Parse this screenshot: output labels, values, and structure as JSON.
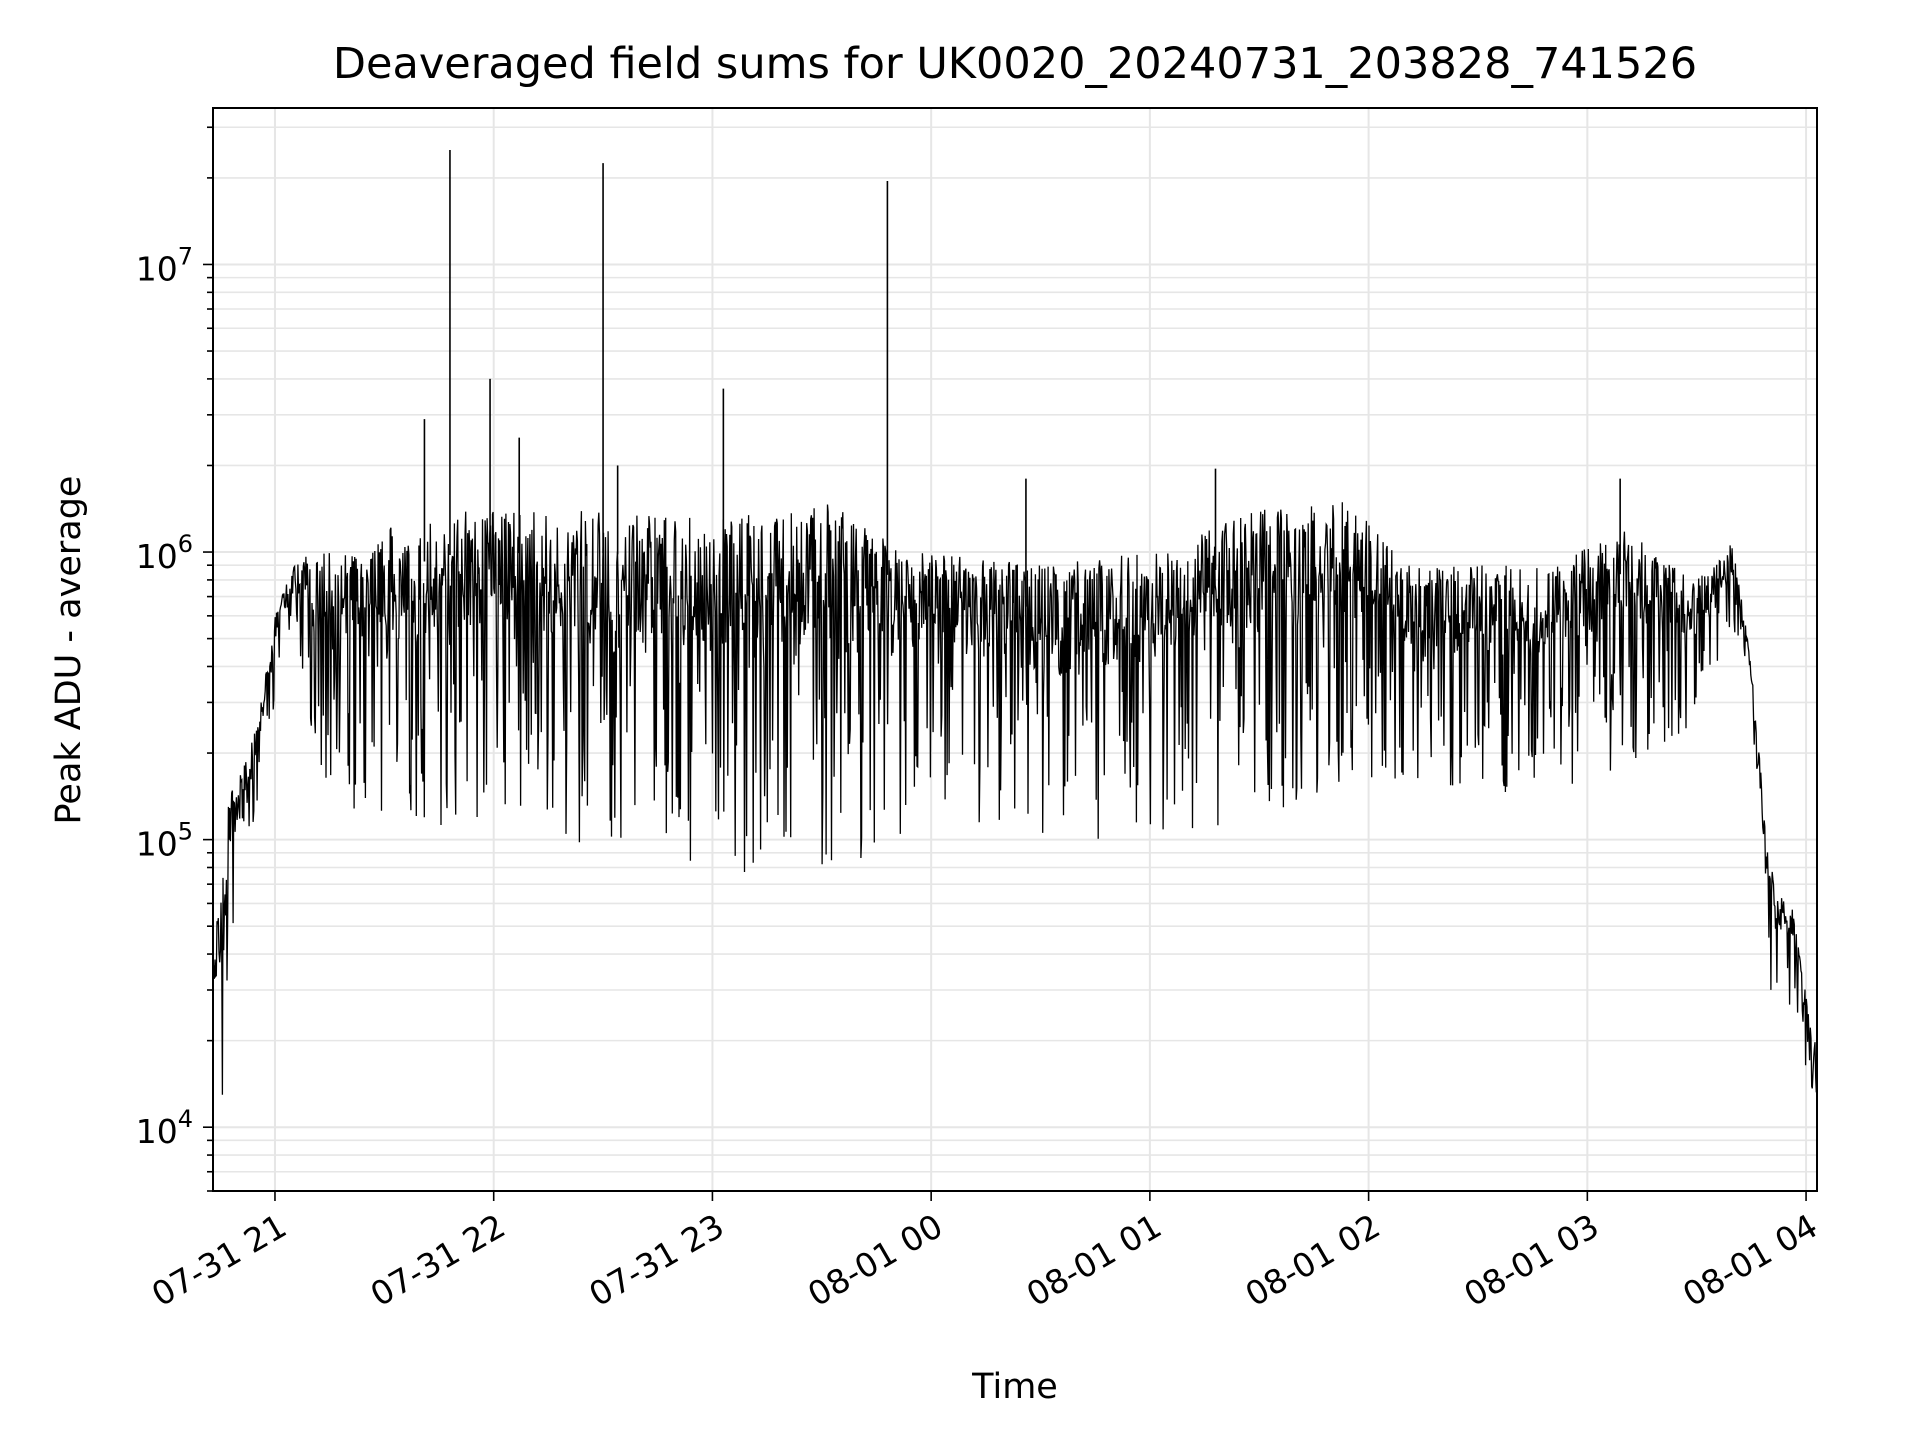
{
  "chart_data": {
    "type": "line",
    "title": "Deaveraged field sums for UK0020_20240731_203828_741526",
    "xlabel": "Time",
    "ylabel": "Peak ADU - average",
    "yscale": "log",
    "ylim": [
      6000,
      35000000
    ],
    "xlim": [
      "2024-07-31 20:43",
      "2024-08-01 04:03"
    ],
    "grid": true,
    "colors": {
      "line": "#000000",
      "grid": "#e6e6e6",
      "axes": "#000000"
    },
    "x_ticks": [
      {
        "time": "2024-07-31 21:00",
        "label": "07-31 21"
      },
      {
        "time": "2024-07-31 22:00",
        "label": "07-31 22"
      },
      {
        "time": "2024-07-31 23:00",
        "label": "07-31 23"
      },
      {
        "time": "2024-08-01 00:00",
        "label": "08-01 00"
      },
      {
        "time": "2024-08-01 01:00",
        "label": "08-01 01"
      },
      {
        "time": "2024-08-01 02:00",
        "label": "08-01 02"
      },
      {
        "time": "2024-08-01 03:00",
        "label": "08-01 03"
      },
      {
        "time": "2024-08-01 04:00",
        "label": "08-01 04"
      }
    ],
    "y_ticks": [
      {
        "value": 10000,
        "base": "10",
        "exp": "4"
      },
      {
        "value": 100000,
        "base": "10",
        "exp": "5"
      },
      {
        "value": 1000000,
        "base": "10",
        "exp": "6"
      },
      {
        "value": 10000000,
        "base": "10",
        "exp": "7"
      }
    ],
    "series": [
      {
        "envelope": [
          {
            "t": "2024-07-31 20:43",
            "low": 13000,
            "high": 35000
          },
          {
            "t": "2024-07-31 20:47",
            "low": 9000,
            "high": 150000
          },
          {
            "t": "2024-07-31 20:50",
            "low": 70000,
            "high": 160000
          },
          {
            "t": "2024-07-31 20:55",
            "low": 130000,
            "high": 250000
          },
          {
            "t": "2024-07-31 21:00",
            "low": 300000,
            "high": 600000
          },
          {
            "t": "2024-07-31 21:05",
            "low": 600000,
            "high": 900000
          },
          {
            "t": "2024-07-31 21:10",
            "low": 200000,
            "high": 1000000
          },
          {
            "t": "2024-07-31 21:20",
            "low": 110000,
            "high": 1000000
          },
          {
            "t": "2024-07-31 21:30",
            "low": 90000,
            "high": 1200000
          },
          {
            "t": "2024-07-31 21:40",
            "low": 100000,
            "high": 1300000
          },
          {
            "t": "2024-07-31 21:50",
            "low": 110000,
            "high": 1400000
          },
          {
            "t": "2024-07-31 22:00",
            "low": 120000,
            "high": 1400000
          },
          {
            "t": "2024-07-31 22:30",
            "low": 90000,
            "high": 1400000
          },
          {
            "t": "2024-07-31 23:00",
            "low": 80000,
            "high": 1300000
          },
          {
            "t": "2024-07-31 23:30",
            "low": 70000,
            "high": 1500000
          },
          {
            "t": "2024-08-01 00:00",
            "low": 120000,
            "high": 1000000
          },
          {
            "t": "2024-08-01 00:30",
            "low": 100000,
            "high": 900000
          },
          {
            "t": "2024-08-01 01:00",
            "low": 100000,
            "high": 1000000
          },
          {
            "t": "2024-08-01 01:30",
            "low": 120000,
            "high": 1400000
          },
          {
            "t": "2024-08-01 01:55",
            "low": 150000,
            "high": 1500000
          },
          {
            "t": "2024-08-01 02:10",
            "low": 160000,
            "high": 900000
          },
          {
            "t": "2024-08-01 02:30",
            "low": 150000,
            "high": 900000
          },
          {
            "t": "2024-08-01 02:50",
            "low": 140000,
            "high": 900000
          },
          {
            "t": "2024-08-01 03:10",
            "low": 170000,
            "high": 1200000
          },
          {
            "t": "2024-08-01 03:30",
            "low": 250000,
            "high": 800000
          },
          {
            "t": "2024-08-01 03:40",
            "low": 550000,
            "high": 1100000
          },
          {
            "t": "2024-08-01 03:45",
            "low": 300000,
            "high": 400000
          },
          {
            "t": "2024-08-01 03:50",
            "low": 30000,
            "high": 80000
          },
          {
            "t": "2024-08-01 03:56",
            "low": 25000,
            "high": 60000
          },
          {
            "t": "2024-08-01 04:02",
            "low": 13000,
            "high": 20000
          }
        ]
      }
    ],
    "spikes": [
      {
        "t": "2024-07-31 21:41",
        "value": 2900000
      },
      {
        "t": "2024-07-31 21:48",
        "value": 25000000
      },
      {
        "t": "2024-07-31 21:59",
        "value": 4000000
      },
      {
        "t": "2024-07-31 22:07",
        "value": 2500000
      },
      {
        "t": "2024-07-31 22:30",
        "value": 22500000
      },
      {
        "t": "2024-07-31 22:34",
        "value": 2000000
      },
      {
        "t": "2024-07-31 23:03",
        "value": 3700000
      },
      {
        "t": "2024-07-31 23:48",
        "value": 19500000
      },
      {
        "t": "2024-08-01 00:26",
        "value": 1800000
      },
      {
        "t": "2024-08-01 01:18",
        "value": 1950000
      },
      {
        "t": "2024-08-01 03:09",
        "value": 1800000
      }
    ]
  }
}
